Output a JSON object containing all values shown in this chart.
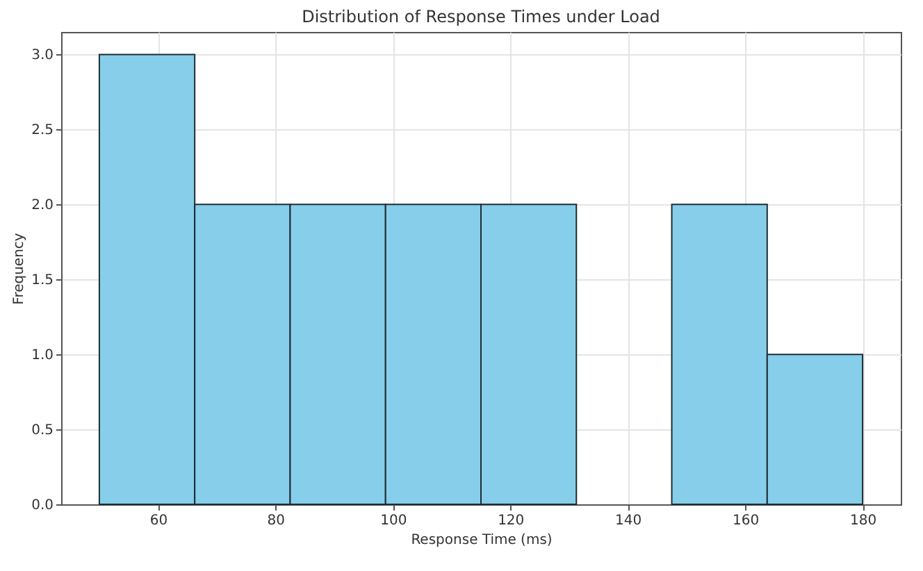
{
  "chart_data": {
    "type": "histogram",
    "title": "Distribution of Response Times under Load",
    "xlabel": "Response Time (ms)",
    "ylabel": "Frequency",
    "bins": [
      50,
      66.25,
      82.5,
      98.75,
      115,
      131.25,
      147.5,
      163.75,
      180
    ],
    "values": [
      3,
      2,
      2,
      2,
      2,
      0,
      2,
      1
    ],
    "color": "#87ceeb",
    "xlim": [
      43.5,
      186.5
    ],
    "xticks": [
      60,
      80,
      100,
      120,
      140,
      160,
      180
    ],
    "ylim": [
      0,
      3.15
    ],
    "yticks": [
      {
        "value": 0,
        "label": "0.0"
      },
      {
        "value": 0.5,
        "label": "0.5"
      },
      {
        "value": 1,
        "label": "1.0"
      },
      {
        "value": 1.5,
        "label": "1.5"
      },
      {
        "value": 2,
        "label": "2.0"
      },
      {
        "value": 2.5,
        "label": "2.5"
      },
      {
        "value": 3,
        "label": "3.0"
      }
    ],
    "grid": true
  }
}
